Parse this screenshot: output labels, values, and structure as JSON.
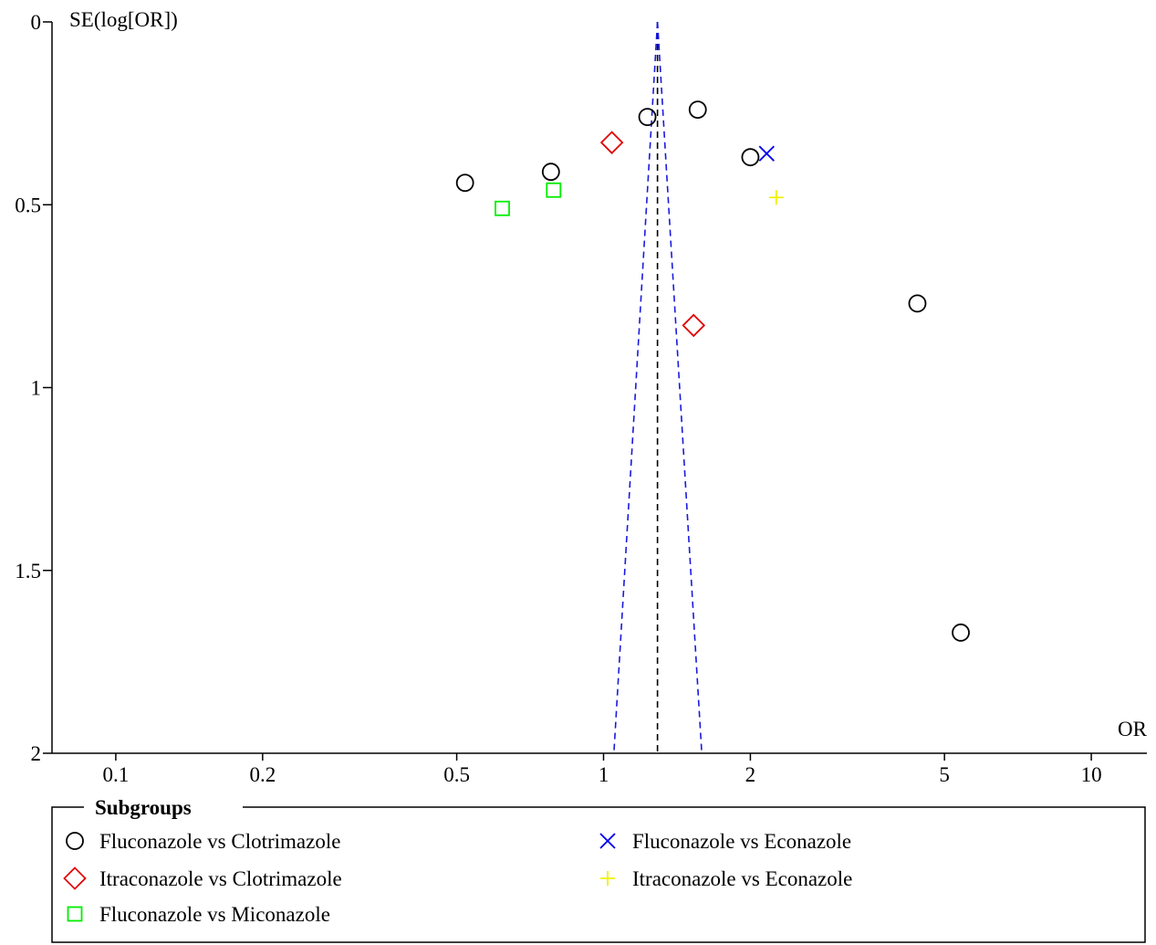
{
  "chart_data": {
    "type": "scatter",
    "subtype": "funnel-plot",
    "xlabel": "OR",
    "ylabel": "SE(log[OR])",
    "x_scale": "log",
    "xlim": [
      0.074,
      13.0
    ],
    "ylim": [
      0,
      2
    ],
    "y_inverted": true,
    "x_ticks": [
      {
        "value": 0.1,
        "label": "0.1"
      },
      {
        "value": 0.2,
        "label": "0.2"
      },
      {
        "value": 0.5,
        "label": "0.5"
      },
      {
        "value": 1,
        "label": "1"
      },
      {
        "value": 2,
        "label": "2"
      },
      {
        "value": 5,
        "label": "5"
      },
      {
        "value": 10,
        "label": "10"
      }
    ],
    "y_ticks": [
      {
        "value": 0,
        "label": "0"
      },
      {
        "value": 0.5,
        "label": "0.5"
      },
      {
        "value": 1,
        "label": "1"
      },
      {
        "value": 1.5,
        "label": "1.5"
      },
      {
        "value": 2,
        "label": "2"
      }
    ],
    "pooled_or": 1.29,
    "funnel": {
      "apex_se": 0,
      "base_se": 2,
      "lower_or_at_base": 1.05,
      "upper_or_at_base": 1.59
    },
    "grid": false,
    "legend": {
      "title": "Subgroups",
      "placement": "bottom"
    },
    "series": [
      {
        "name": "Fluconazole vs Clotrimazole",
        "marker": "circle",
        "color": "#000000",
        "points": [
          [
            0.52,
            0.44
          ],
          [
            0.78,
            0.41
          ],
          [
            1.23,
            0.26
          ],
          [
            1.56,
            0.24
          ],
          [
            2.0,
            0.37
          ],
          [
            4.4,
            0.77
          ],
          [
            5.4,
            1.67
          ]
        ]
      },
      {
        "name": "Itraconazole vs Clotrimazole",
        "marker": "diamond",
        "color": "#e00000",
        "points": [
          [
            1.04,
            0.33
          ],
          [
            1.53,
            0.83
          ]
        ]
      },
      {
        "name": "Fluconazole vs Miconazole",
        "marker": "square",
        "color": "#00ee00",
        "points": [
          [
            0.62,
            0.51
          ],
          [
            0.79,
            0.46
          ]
        ]
      },
      {
        "name": "Fluconazole vs Econazole",
        "marker": "x",
        "color": "#0000ee",
        "points": [
          [
            2.16,
            0.36
          ]
        ]
      },
      {
        "name": "Itraconazole vs Econazole",
        "marker": "plus",
        "color": "#f0f000",
        "points": [
          [
            2.26,
            0.48
          ]
        ]
      }
    ]
  }
}
